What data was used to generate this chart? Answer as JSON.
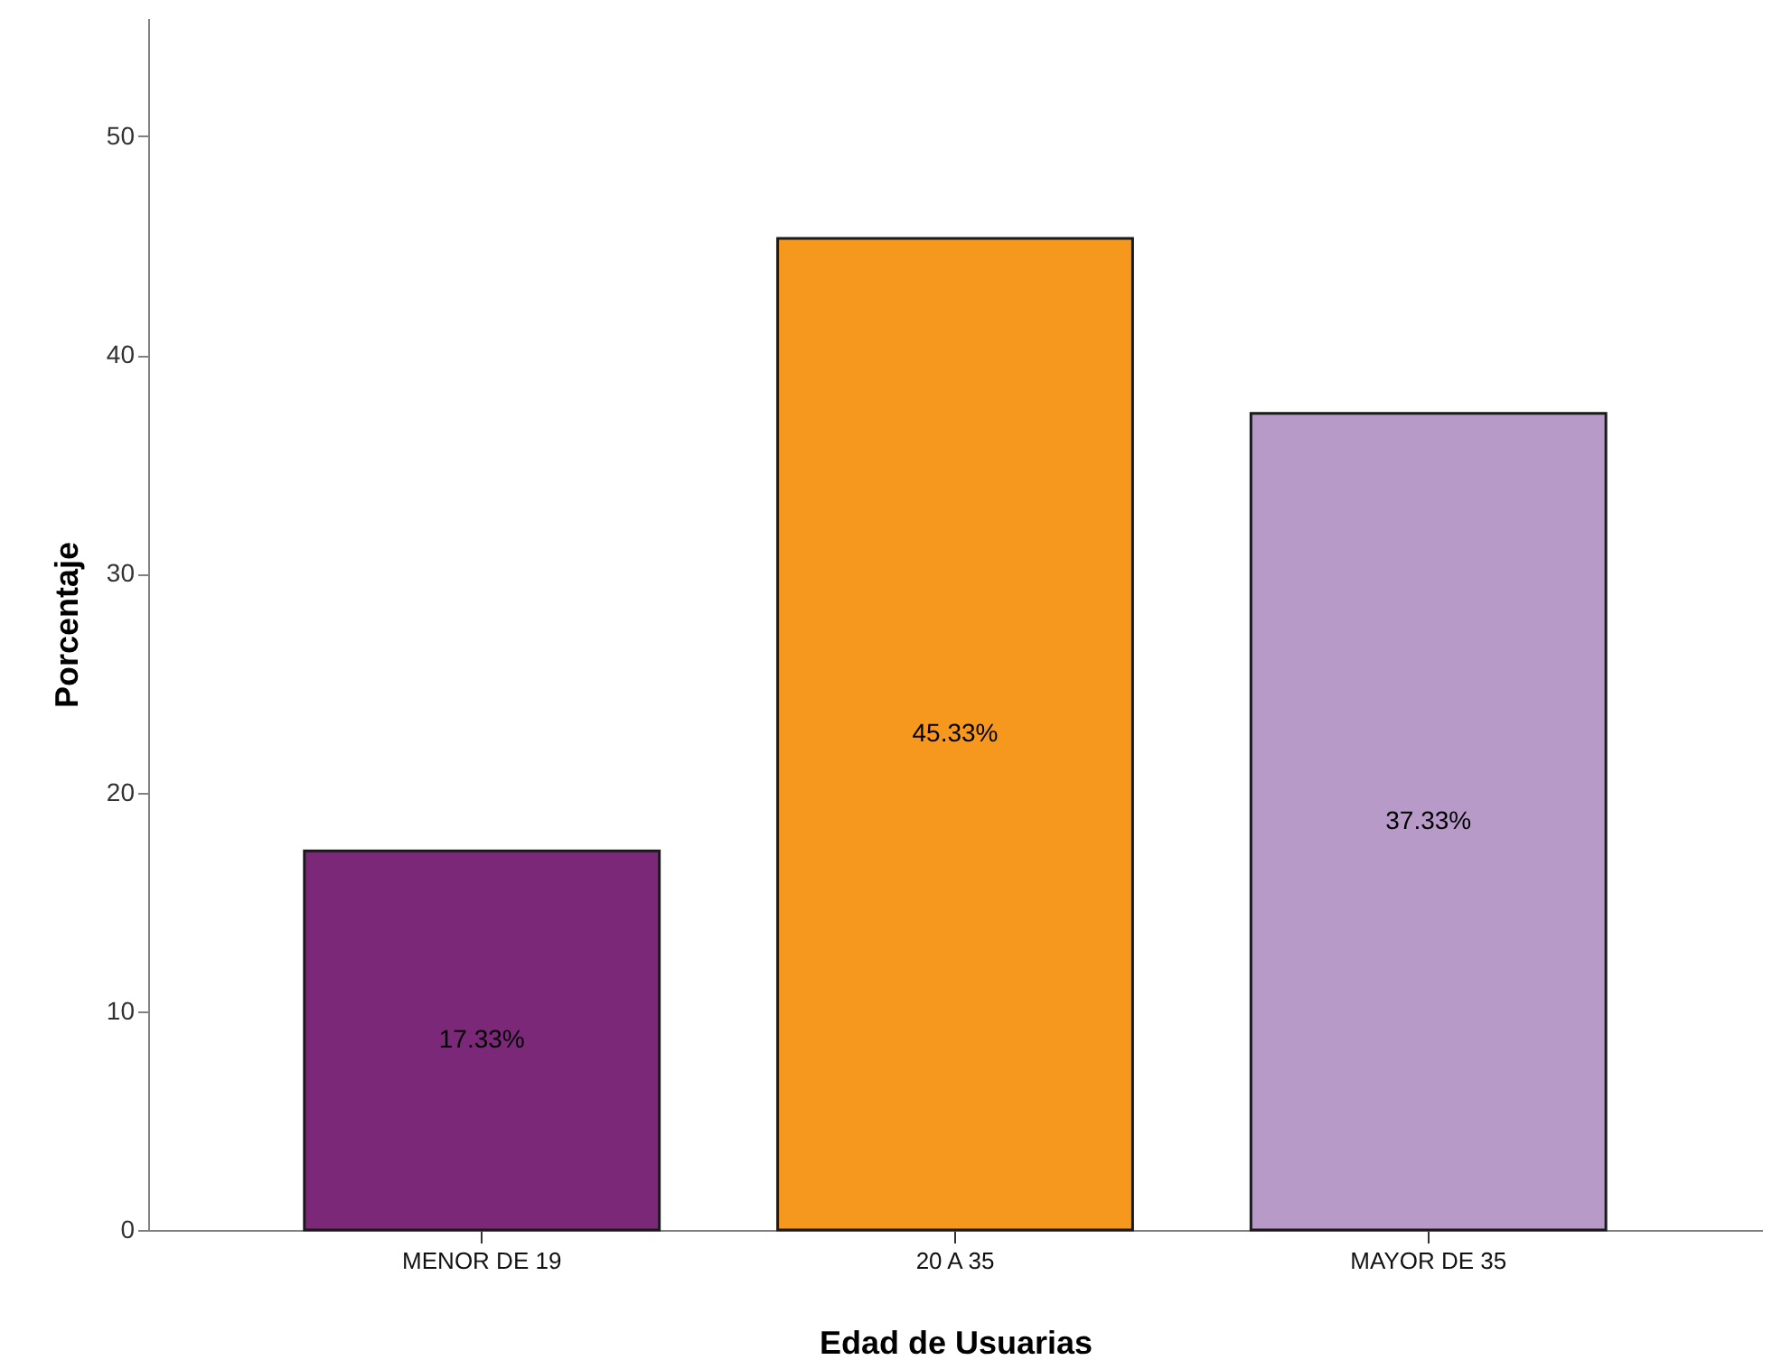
{
  "chart_data": {
    "type": "bar",
    "xlabel": "Edad de Usuarias",
    "ylabel": "Porcentaje",
    "categories": [
      "MENOR DE 19",
      "20 A 35",
      "MAYOR DE 35"
    ],
    "values": [
      17.33,
      45.33,
      37.33
    ],
    "colors": [
      "#7b2879",
      "#f7981e",
      "#b89ac8"
    ],
    "value_labels": [
      "17.33%",
      "45.33%",
      "37.33%"
    ],
    "ylim": [
      0,
      55.4
    ],
    "yticks": [
      0,
      10,
      20,
      30,
      40,
      50
    ]
  }
}
